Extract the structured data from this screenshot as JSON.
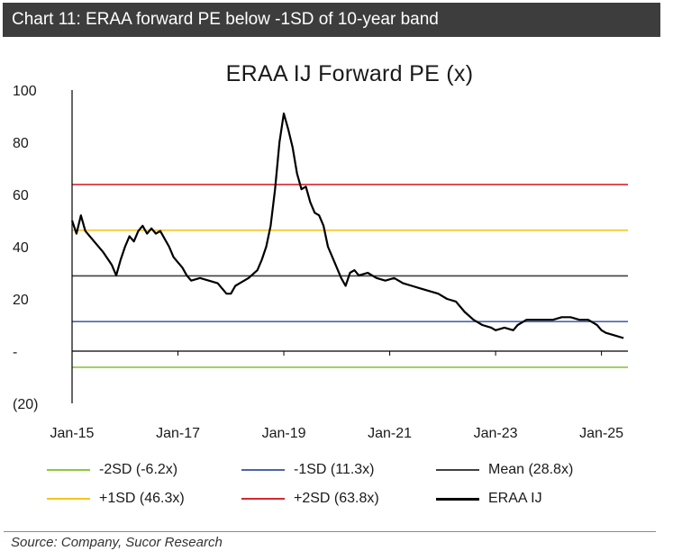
{
  "header": {
    "title": "Chart 11:  ERAA forward PE below -1SD of 10-year band"
  },
  "footer": {
    "source": "Source: Company, Sucor Research"
  },
  "chart_data": {
    "type": "line",
    "title": "ERAA IJ Forward PE (x)",
    "xlabel": "",
    "ylabel": "",
    "ylim": [
      -20,
      100
    ],
    "xlim": [
      "2015-01",
      "2025-07"
    ],
    "y_ticks": [
      {
        "value": 100,
        "label": "100"
      },
      {
        "value": 80,
        "label": "80"
      },
      {
        "value": 60,
        "label": "60"
      },
      {
        "value": 40,
        "label": "40"
      },
      {
        "value": 20,
        "label": "20"
      },
      {
        "value": 0,
        "label": "-"
      },
      {
        "value": -20,
        "label": "(20)"
      }
    ],
    "x_ticks": [
      {
        "value": "2015-01",
        "label": "Jan-15"
      },
      {
        "value": "2017-01",
        "label": "Jan-17"
      },
      {
        "value": "2019-01",
        "label": "Jan-19"
      },
      {
        "value": "2021-01",
        "label": "Jan-21"
      },
      {
        "value": "2023-01",
        "label": "Jan-23"
      },
      {
        "value": "2025-01",
        "label": "Jan-25"
      }
    ],
    "grid": false,
    "legend_position": "bottom",
    "bands": [
      {
        "name": "-2SD (-6.2x)",
        "value": -6.2,
        "color": "#8cc63f"
      },
      {
        "name": "-1SD (11.3x)",
        "value": 11.3,
        "color": "#4a63b4"
      },
      {
        "name": "Mean (28.8x)",
        "value": 28.8,
        "color": "#404040"
      },
      {
        "name": "+1SD (46.3x)",
        "value": 46.3,
        "color": "#f5c518"
      },
      {
        "name": "+2SD (63.8x)",
        "value": 63.8,
        "color": "#d7262e"
      }
    ],
    "series": [
      {
        "name": "ERAA IJ",
        "color": "#000000",
        "points": [
          [
            "2015-01",
            50
          ],
          [
            "2015-02",
            45
          ],
          [
            "2015-03",
            52
          ],
          [
            "2015-04",
            46
          ],
          [
            "2015-06",
            42
          ],
          [
            "2015-08",
            38
          ],
          [
            "2015-10",
            33
          ],
          [
            "2015-11",
            29
          ],
          [
            "2015-12",
            35
          ],
          [
            "2016-01",
            40
          ],
          [
            "2016-02",
            44
          ],
          [
            "2016-03",
            42
          ],
          [
            "2016-04",
            46
          ],
          [
            "2016-05",
            48
          ],
          [
            "2016-06",
            45
          ],
          [
            "2016-07",
            47
          ],
          [
            "2016-08",
            45
          ],
          [
            "2016-09",
            46
          ],
          [
            "2016-10",
            43
          ],
          [
            "2016-11",
            40
          ],
          [
            "2016-12",
            36
          ],
          [
            "2017-01",
            34
          ],
          [
            "2017-02",
            32
          ],
          [
            "2017-03",
            29
          ],
          [
            "2017-04",
            27
          ],
          [
            "2017-06",
            28
          ],
          [
            "2017-08",
            27
          ],
          [
            "2017-10",
            26
          ],
          [
            "2017-12",
            22
          ],
          [
            "2018-01",
            22
          ],
          [
            "2018-02",
            25
          ],
          [
            "2018-03",
            26
          ],
          [
            "2018-05",
            28
          ],
          [
            "2018-07",
            31
          ],
          [
            "2018-08",
            35
          ],
          [
            "2018-09",
            40
          ],
          [
            "2018-10",
            48
          ],
          [
            "2018-11",
            62
          ],
          [
            "2018-12",
            80
          ],
          [
            "2019-01",
            91
          ],
          [
            "2019-02",
            85
          ],
          [
            "2019-03",
            78
          ],
          [
            "2019-04",
            68
          ],
          [
            "2019-05",
            62
          ],
          [
            "2019-06",
            63
          ],
          [
            "2019-07",
            57
          ],
          [
            "2019-08",
            53
          ],
          [
            "2019-09",
            52
          ],
          [
            "2019-10",
            48
          ],
          [
            "2019-11",
            40
          ],
          [
            "2019-12",
            36
          ],
          [
            "2020-01",
            32
          ],
          [
            "2020-02",
            28
          ],
          [
            "2020-03",
            25
          ],
          [
            "2020-04",
            30
          ],
          [
            "2020-05",
            31
          ],
          [
            "2020-06",
            29
          ],
          [
            "2020-08",
            30
          ],
          [
            "2020-10",
            28
          ],
          [
            "2020-12",
            27
          ],
          [
            "2021-02",
            28
          ],
          [
            "2021-04",
            26
          ],
          [
            "2021-06",
            25
          ],
          [
            "2021-08",
            24
          ],
          [
            "2021-10",
            23
          ],
          [
            "2021-12",
            22
          ],
          [
            "2022-02",
            20
          ],
          [
            "2022-04",
            19
          ],
          [
            "2022-06",
            15
          ],
          [
            "2022-08",
            12
          ],
          [
            "2022-10",
            10
          ],
          [
            "2022-12",
            9
          ],
          [
            "2023-01",
            8
          ],
          [
            "2023-03",
            9
          ],
          [
            "2023-05",
            8
          ],
          [
            "2023-06",
            10
          ],
          [
            "2023-08",
            12
          ],
          [
            "2023-10",
            12
          ],
          [
            "2023-12",
            12
          ],
          [
            "2024-02",
            12
          ],
          [
            "2024-04",
            13
          ],
          [
            "2024-06",
            13
          ],
          [
            "2024-08",
            12
          ],
          [
            "2024-10",
            12
          ],
          [
            "2024-12",
            10
          ],
          [
            "2025-01",
            8
          ],
          [
            "2025-02",
            7
          ],
          [
            "2025-04",
            6
          ],
          [
            "2025-06",
            5
          ]
        ]
      }
    ]
  }
}
